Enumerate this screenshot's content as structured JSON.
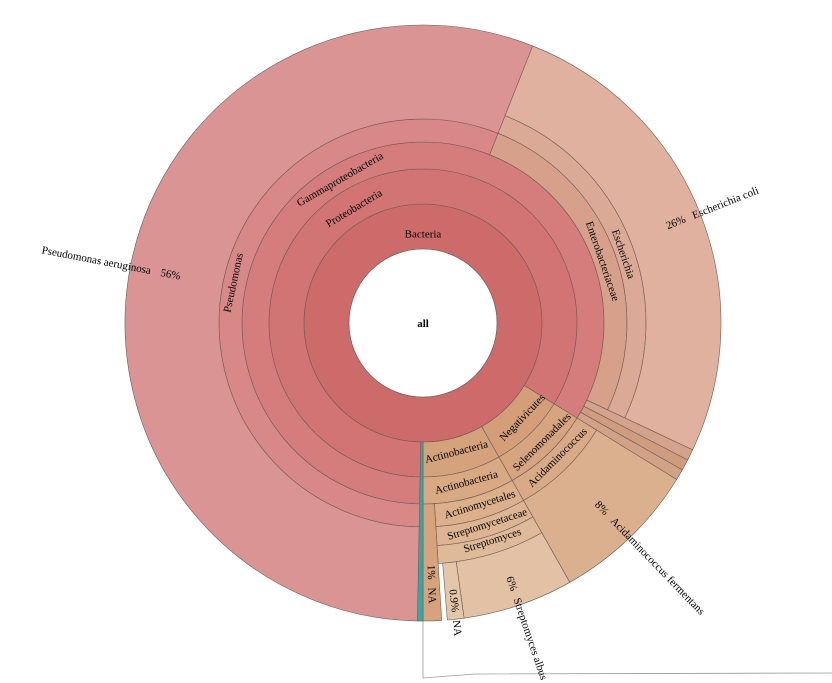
{
  "chart_data": {
    "type": "sunburst",
    "root": {
      "label": "all",
      "color": "#ffffff"
    },
    "nodes": [
      {
        "id": "bacteria",
        "label": "Bacteria",
        "parent": "all",
        "percent": 100,
        "color": "#cd6b6b"
      },
      {
        "id": "proteobacteria",
        "label": "Proteobacteria",
        "parent": "bacteria",
        "percent": 83.8,
        "color": "#d27474"
      },
      {
        "id": "gammaproteobacteria",
        "label": "Gammaproteobacteria",
        "parent": "proteobacteria",
        "percent": 83.8,
        "color": "#d57d7d"
      },
      {
        "id": "pseudomonas",
        "label": "Pseudomonas",
        "parent": "gammaproteobacteria",
        "percent": 56,
        "color": "#d98888"
      },
      {
        "id": "pseudomonas-aeruginosa",
        "label": "Pseudomonas aeruginosa",
        "percent_label": "56%",
        "parent": "pseudomonas",
        "percent": 56,
        "color": "#db9494"
      },
      {
        "id": "enterobacteriaceae",
        "label": "Enterobacteriaceae",
        "parent": "gammaproteobacteria",
        "percent": 26,
        "color": "#d7a08b"
      },
      {
        "id": "escherichia",
        "label": "Escherichia",
        "parent": "enterobacteriaceae",
        "percent": 26,
        "color": "#dbaa97"
      },
      {
        "id": "escherichia-coli",
        "label": "Escherichia coli",
        "percent_label": "26%",
        "parent": "escherichia",
        "percent": 26,
        "color": "#dfb19e"
      },
      {
        "id": "minor-1",
        "label": "",
        "parent": "gammaproteobacteria",
        "percent": 0.6,
        "color": "#d4a38c"
      },
      {
        "id": "minor-2",
        "label": "",
        "parent": "gammaproteobacteria",
        "percent": 0.6,
        "color": "#cf9c80"
      },
      {
        "id": "minor-3",
        "label": "",
        "parent": "gammaproteobacteria",
        "percent": 0.6,
        "color": "#d2a286"
      },
      {
        "id": "negativicutes",
        "label": "Negativicutes",
        "parent": "bacteria",
        "percent": 8,
        "color": "#d39e78"
      },
      {
        "id": "selenomonadales",
        "label": "Selenomonadales",
        "parent": "negativicutes",
        "percent": 8,
        "color": "#d6a580"
      },
      {
        "id": "acidaminococcus",
        "label": "Acidaminococcus",
        "parent": "selenomonadales",
        "percent": 8,
        "color": "#d8aa87"
      },
      {
        "id": "acidaminococcus-fermentans",
        "label": "Acidaminococcus fermentans",
        "percent_label": "8%",
        "parent": "acidaminococcus",
        "percent": 8,
        "color": "#dbb08f"
      },
      {
        "id": "actinobacteria-phylum",
        "label": "Actinobacteria",
        "parent": "bacteria",
        "percent": 8.2,
        "color": "#d4a27b"
      },
      {
        "id": "actinobacteria-class",
        "label": "Actinobacteria",
        "parent": "actinobacteria-phylum",
        "percent": 8.2,
        "color": "#d8a982"
      },
      {
        "id": "actinomycetales",
        "label": "Actinomycetales",
        "parent": "actinobacteria-class",
        "percent": 7.2,
        "color": "#dbb08b"
      },
      {
        "id": "streptomycetaceae",
        "label": "Streptomycetaceae",
        "parent": "actinomycetales",
        "percent": 7.2,
        "color": "#ddb592"
      },
      {
        "id": "streptomyces",
        "label": "Streptomyces",
        "parent": "streptomycetaceae",
        "percent": 7.2,
        "color": "#dfba99"
      },
      {
        "id": "streptomyces-albus",
        "label": "Streptomyces albus",
        "percent_label": "6%",
        "parent": "streptomyces",
        "percent": 6,
        "color": "#e2c1a4"
      },
      {
        "id": "na-0-9",
        "label": "NA",
        "percent_label": "0.9%",
        "parent": "streptomyces",
        "percent": 0.9,
        "color": "#e4c6a9"
      },
      {
        "id": "na-1",
        "label": "NA",
        "percent_label": "1%",
        "parent": "actinobacteria-class",
        "percent": 1,
        "color": "#d6a37c"
      },
      {
        "id": "teal-sliver",
        "label": "",
        "parent": "bacteria",
        "percent": 0.3,
        "color": "#3aa6a0"
      }
    ]
  }
}
